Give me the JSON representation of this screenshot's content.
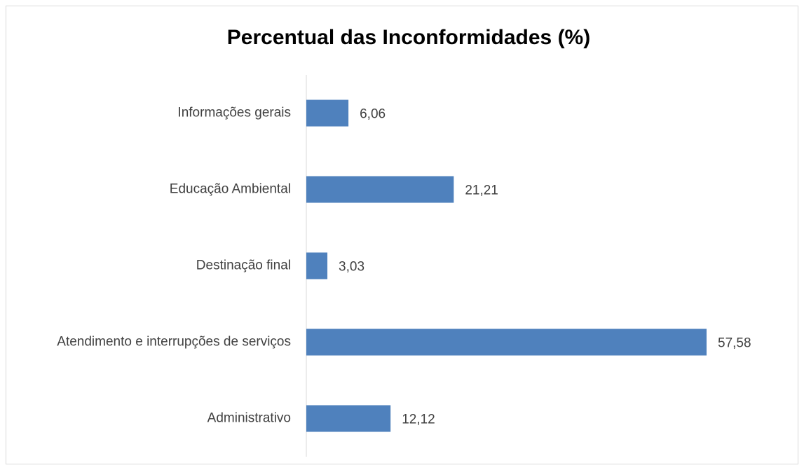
{
  "chart_data": {
    "type": "bar",
    "orientation": "horizontal",
    "title": "Percentual das Inconformidades (%)",
    "categories": [
      "Informações gerais",
      "Educação Ambiental",
      "Destinação final",
      "Atendimento e interrupções de serviços",
      "Administrativo"
    ],
    "values": [
      6.06,
      21.21,
      3.03,
      57.58,
      12.12
    ],
    "value_labels": [
      "6,06",
      "21,21",
      "3,03",
      "57,58",
      "12,12"
    ],
    "color": "#4f81bd"
  }
}
